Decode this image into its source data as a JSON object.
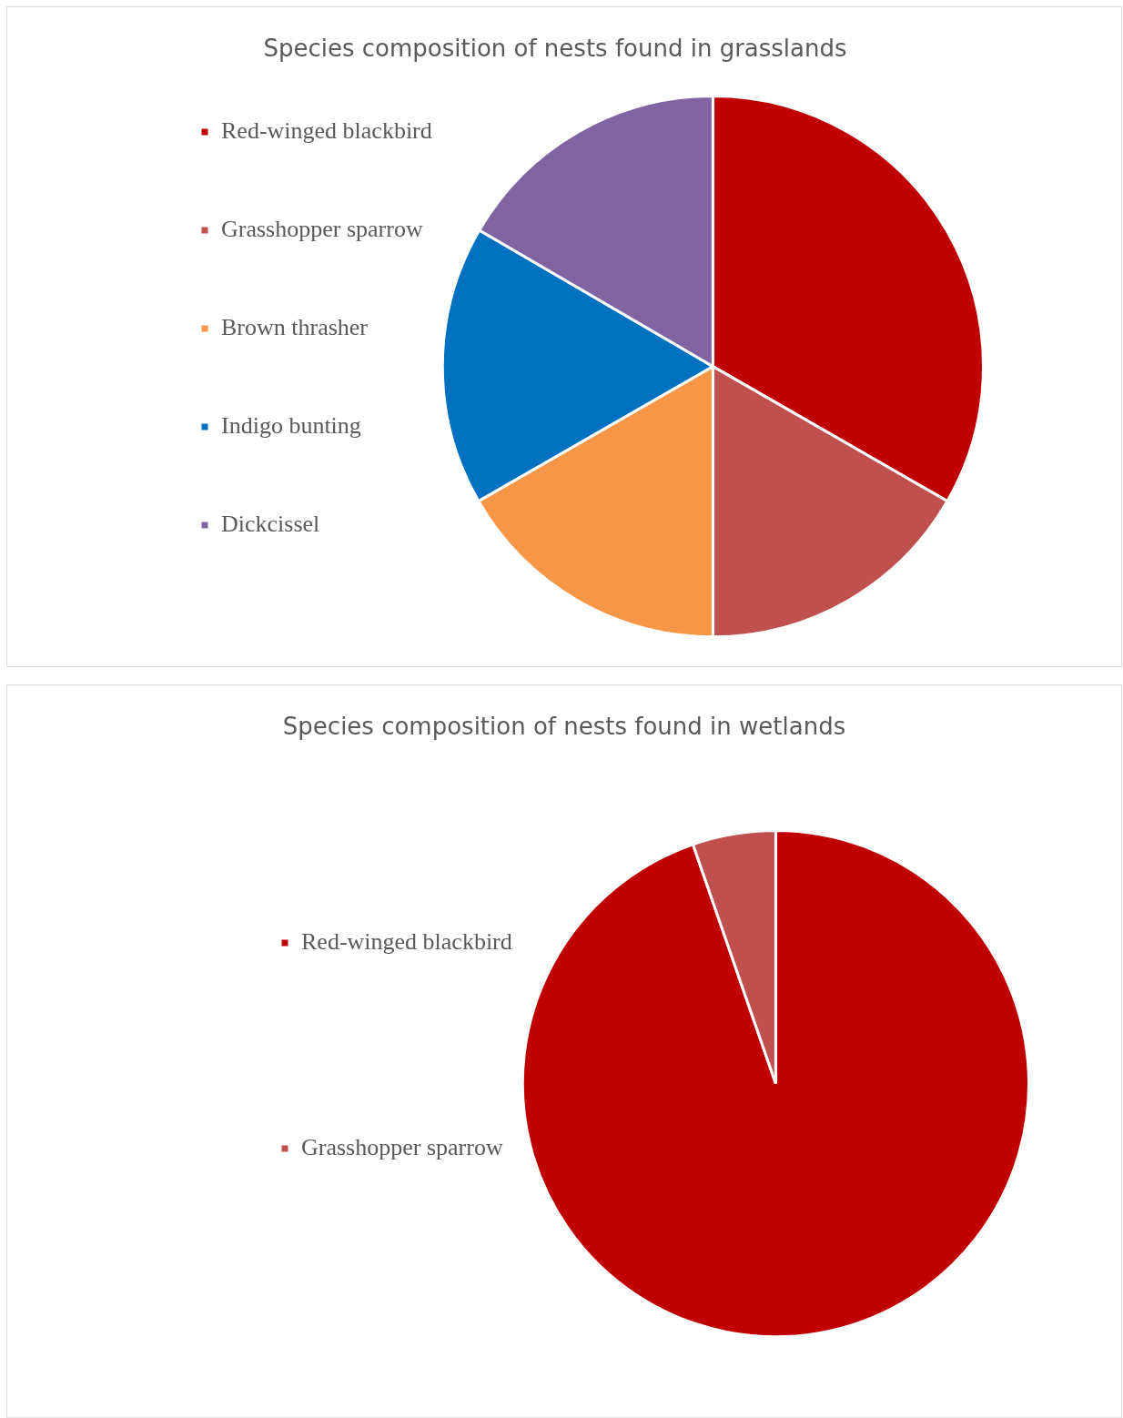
{
  "chart_data": [
    {
      "type": "pie",
      "title": "Species composition of nests found in grasslands",
      "categories": [
        "Red-winged blackbird",
        "Grasshopper sparrow",
        "Brown thrasher",
        "Indigo bunting",
        "Dickcissel"
      ],
      "values": [
        33.3,
        16.7,
        16.7,
        16.7,
        16.6
      ],
      "colors": [
        "#c00000",
        "#c0504d",
        "#f79646",
        "#0070c0",
        "#8064a2"
      ],
      "legend": "left"
    },
    {
      "type": "pie",
      "title": "Species composition of nests found in wetlands",
      "categories": [
        "Red-winged blackbird",
        "Grasshopper sparrow"
      ],
      "values": [
        94.7,
        5.3
      ],
      "colors": [
        "#c00000",
        "#c0504d"
      ],
      "legend": "left"
    }
  ]
}
